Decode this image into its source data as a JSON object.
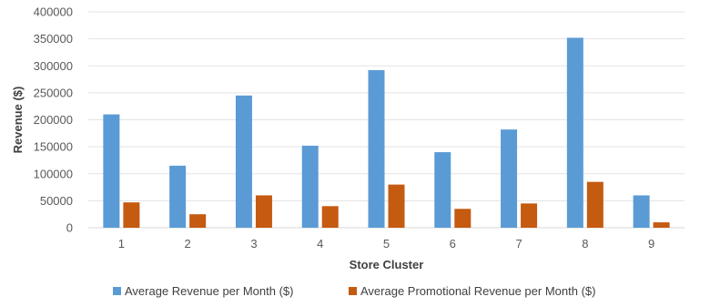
{
  "chart_data": {
    "type": "bar",
    "title": "",
    "xlabel": "Store Cluster",
    "ylabel": "Revenue ($)",
    "ylim": [
      0,
      400000
    ],
    "yticks": [
      0,
      50000,
      100000,
      150000,
      200000,
      250000,
      300000,
      350000,
      400000
    ],
    "grid": true,
    "legend_position": "bottom",
    "categories": [
      "1",
      "2",
      "3",
      "4",
      "5",
      "6",
      "7",
      "8",
      "9"
    ],
    "series": [
      {
        "name": "Average Revenue per Month ($)",
        "color": "#5b9bd5",
        "values": [
          210000,
          115000,
          245000,
          152000,
          292000,
          140000,
          182000,
          352000,
          60000
        ]
      },
      {
        "name": "Average Promotional Revenue per Month ($)",
        "color": "#c55a11",
        "values": [
          47000,
          25000,
          60000,
          40000,
          80000,
          35000,
          45000,
          85000,
          10000
        ]
      }
    ]
  }
}
